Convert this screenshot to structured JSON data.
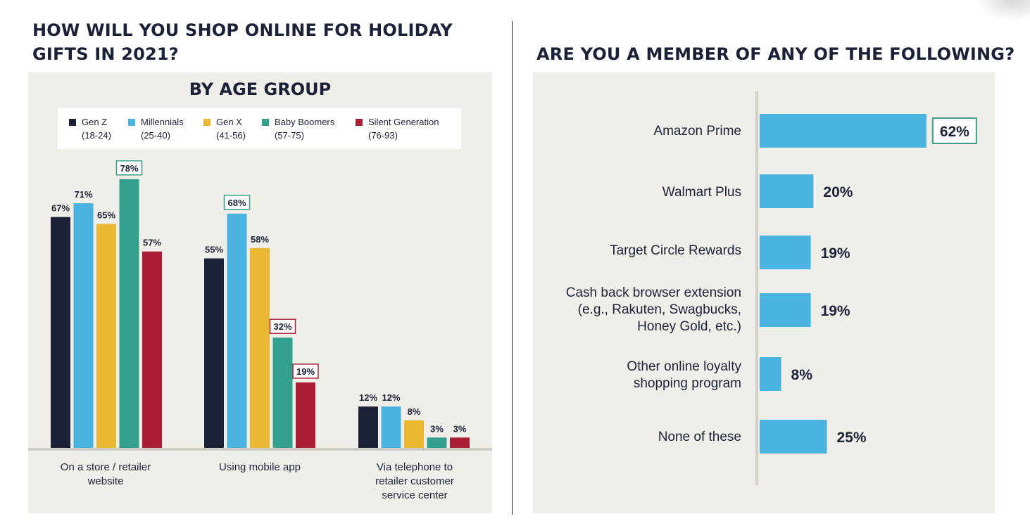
{
  "left_title": [
    "HOW WILL YOU SHOP ONLINE FOR HOLIDAY",
    "GIFTS IN 2021?"
  ],
  "right_title": "ARE YOU A MEMBER OF ANY OF THE FOLLOWING?",
  "colors": {
    "navy": "#1b2238",
    "gen_z": "#1b2238",
    "millennials": "#4bb3e0",
    "gen_x": "#ebb833",
    "baby_boomers": "#33a08e",
    "silent": "#ab1f35",
    "member_bar": "#4bb3e0",
    "panel": "#f0eee9",
    "highlight_green": "#3a9e8a",
    "highlight_red": "#ab1f35"
  },
  "chart_data": [
    {
      "type": "bar",
      "title": "BY AGE GROUP",
      "categories": [
        [
          "On a store / retailer",
          "website"
        ],
        [
          "Using mobile app"
        ],
        [
          "Via telephone to",
          "retailer customer",
          "service center"
        ]
      ],
      "series": [
        {
          "name": "Gen Z",
          "range": "(18-24)",
          "color": "#1b2238",
          "values": [
            67,
            55,
            12
          ]
        },
        {
          "name": "Millennials",
          "range": "(25-40)",
          "color": "#4bb3e0",
          "values": [
            71,
            68,
            12
          ]
        },
        {
          "name": "Gen X",
          "range": "(41-56)",
          "color": "#ebb833",
          "values": [
            65,
            58,
            8
          ]
        },
        {
          "name": "Baby Boomers",
          "range": "(57-75)",
          "color": "#33a08e",
          "values": [
            78,
            32,
            3
          ]
        },
        {
          "name": "Silent Generation",
          "range": "(76-93)",
          "color": "#ab1f35",
          "values": [
            57,
            19,
            3
          ]
        }
      ],
      "highlights": [
        {
          "series": 3,
          "category": 0,
          "style": "green"
        },
        {
          "series": 1,
          "category": 1,
          "style": "green"
        },
        {
          "series": 3,
          "category": 1,
          "style": "red"
        },
        {
          "series": 4,
          "category": 1,
          "style": "red"
        }
      ],
      "unit": "%",
      "ylim": [
        0,
        100
      ],
      "legend": "top"
    },
    {
      "type": "bar",
      "orientation": "horizontal",
      "title": "ARE YOU A MEMBER OF ANY OF THE FOLLOWING?",
      "categories": [
        [
          "Amazon Prime"
        ],
        [
          "Walmart Plus"
        ],
        [
          "Target Circle Rewards"
        ],
        [
          "Cash back browser extension",
          "(e.g., Rakuten, Swagbucks,",
          "Honey Gold, etc.)"
        ],
        [
          "Other online loyalty",
          "shopping program"
        ],
        [
          "None of these"
        ]
      ],
      "values": [
        62,
        20,
        19,
        19,
        8,
        25
      ],
      "highlights": [
        0
      ],
      "unit": "%",
      "xlim": [
        0,
        100
      ]
    }
  ]
}
